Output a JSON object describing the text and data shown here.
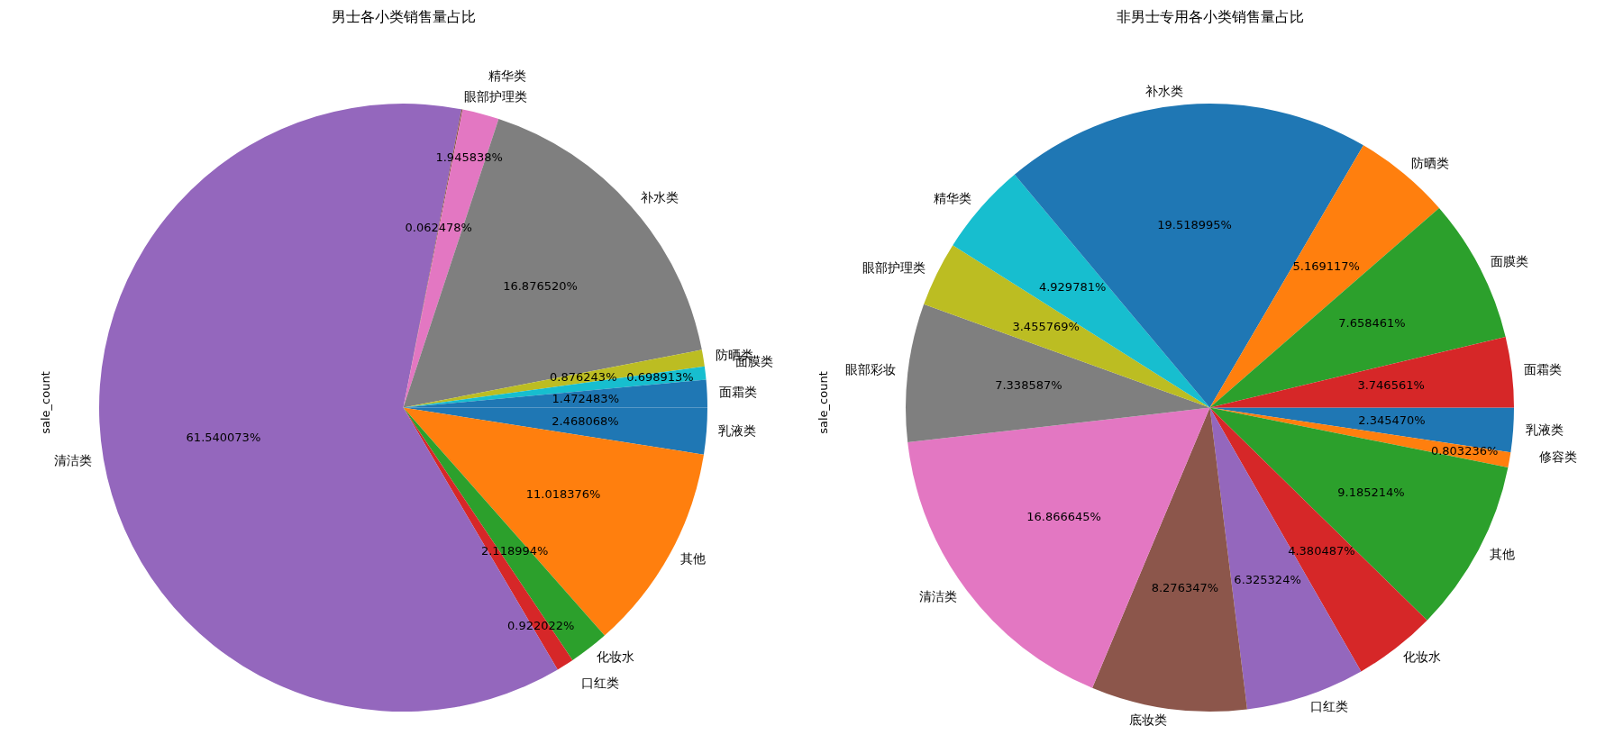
{
  "chart_data": [
    {
      "type": "pie",
      "title": "男士各小类销售量占比",
      "ylabel": "sale_count",
      "legend": false,
      "categories": [
        "乳液类",
        "其他",
        "化妆水",
        "口红类",
        "清洁类",
        "眼部护理类",
        "精华类",
        "补水类",
        "防晒类",
        "面膜类",
        "面霜类"
      ],
      "values": [
        2.468068,
        11.018376,
        2.118994,
        0.922022,
        61.540073,
        0.062478,
        1.945838,
        16.87652,
        0.876243,
        0.698913,
        1.472483
      ],
      "value_labels": [
        "2.468068%",
        "11.018376%",
        "2.118994%",
        "0.922022%",
        "61.540073%",
        "0.062478%",
        "1.945838%",
        "16.876520%",
        "0.876243%",
        "0.698913%",
        "1.472483%"
      ],
      "colors": [
        "#1f77b4",
        "#ff7f0e",
        "#2ca02c",
        "#d62728",
        "#9467bd",
        "#8c564b",
        "#e377c2",
        "#7f7f7f",
        "#bcbd22",
        "#17becf",
        "#1f77b4"
      ]
    },
    {
      "type": "pie",
      "title": "非男士专用各小类销售量占比",
      "ylabel": "sale_count",
      "legend": false,
      "categories": [
        "乳液类",
        "修容类",
        "其他",
        "化妆水",
        "口红类",
        "底妆类",
        "清洁类",
        "眼部彩妆",
        "眼部护理类",
        "精华类",
        "补水类",
        "防晒类",
        "面膜类",
        "面霜类"
      ],
      "values": [
        2.34547,
        0.803236,
        9.185214,
        4.380487,
        6.325324,
        8.276347,
        16.866645,
        7.338587,
        3.455769,
        4.929781,
        19.518995,
        5.169117,
        7.658461,
        3.746561
      ],
      "value_labels": [
        "2.345470%",
        "0.803236%",
        "9.185214%",
        "4.380487%",
        "6.325324%",
        "8.276347%",
        "16.866645%",
        "7.338587%",
        "3.455769%",
        "4.929781%",
        "19.518995%",
        "5.169117%",
        "7.658461%",
        "3.746561%"
      ],
      "colors": [
        "#1f77b4",
        "#ff7f0e",
        "#2ca02c",
        "#d62728",
        "#9467bd",
        "#8c564b",
        "#e377c2",
        "#7f7f7f",
        "#bcbd22",
        "#17becf",
        "#1f77b4",
        "#ff7f0e",
        "#2ca02c",
        "#d62728"
      ]
    }
  ]
}
